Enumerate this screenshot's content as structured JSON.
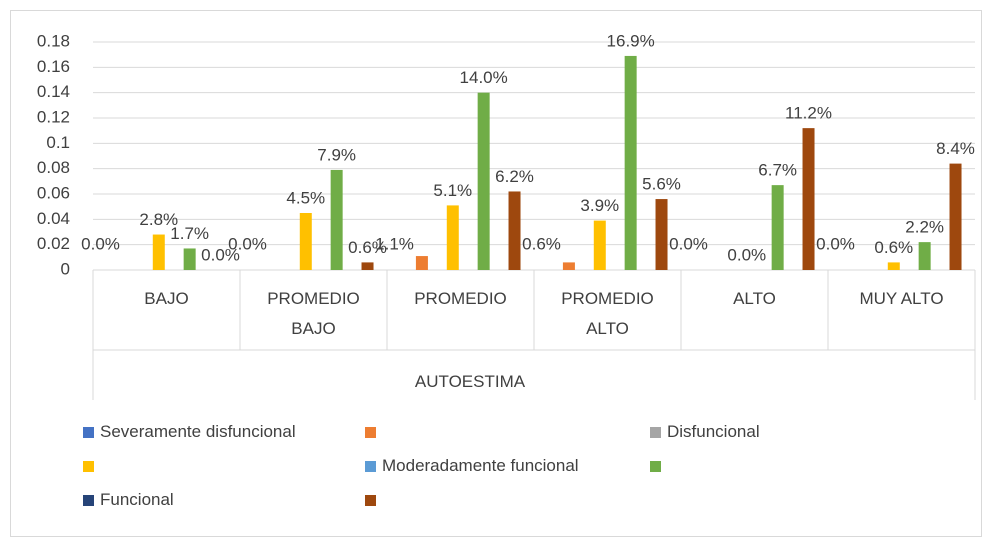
{
  "chart_data": {
    "type": "bar",
    "x_label": "AUTOESTIMA",
    "categories": [
      "BAJO",
      "PROMEDIO BAJO",
      "PROMEDIO",
      "PROMEDIO ALTO",
      "ALTO",
      "MUY ALTO"
    ],
    "series": [
      {
        "color": "#ed7d31",
        "values": [
          0,
          0,
          0.011,
          0.006,
          0,
          0
        ],
        "value_labels": [
          "0.0%",
          "0.0%",
          "1.1%",
          "0.6%",
          "0.0%",
          "0.0%"
        ]
      },
      {
        "color": "#ffc000",
        "values": [
          0.028,
          0.045,
          0.051,
          0.039,
          0,
          0.006
        ],
        "value_labels": [
          "2.8%",
          "4.5%",
          "5.1%",
          "3.9%",
          "0.0%",
          "0.6%"
        ]
      },
      {
        "color": "#70ad47",
        "values": [
          0.017,
          0.079,
          0.14,
          0.169,
          0.067,
          0.022
        ],
        "value_labels": [
          "1.7%",
          "7.9%",
          "14.0%",
          "16.9%",
          "6.7%",
          "2.2%"
        ]
      },
      {
        "color": "#9e480e",
        "values": [
          0,
          0.006,
          0.062,
          0.056,
          0.112,
          0.084
        ],
        "value_labels": [
          "0.0%",
          "0.6%",
          "6.2%",
          "5.6%",
          "11.2%",
          "8.4%"
        ]
      }
    ],
    "legend": [
      {
        "name": "Severamente disfuncional",
        "color": "#4472c4"
      },
      {
        "color": "#ed7d31"
      },
      {
        "name": "Disfuncional",
        "color": "#a5a5a5"
      },
      {
        "color": "#ffc000"
      },
      {
        "name": "Moderadamente funcional",
        "color": "#5b9bd5"
      },
      {
        "color": "#70ad47"
      },
      {
        "name": "Funcional",
        "color": "#264478"
      },
      {
        "color": "#9e480e"
      }
    ],
    "ylim": [
      0,
      0.18
    ],
    "yticks": [
      0,
      0.02,
      0.04,
      0.06,
      0.08,
      0.1,
      0.12,
      0.14,
      0.16,
      0.18
    ],
    "grid": true
  }
}
